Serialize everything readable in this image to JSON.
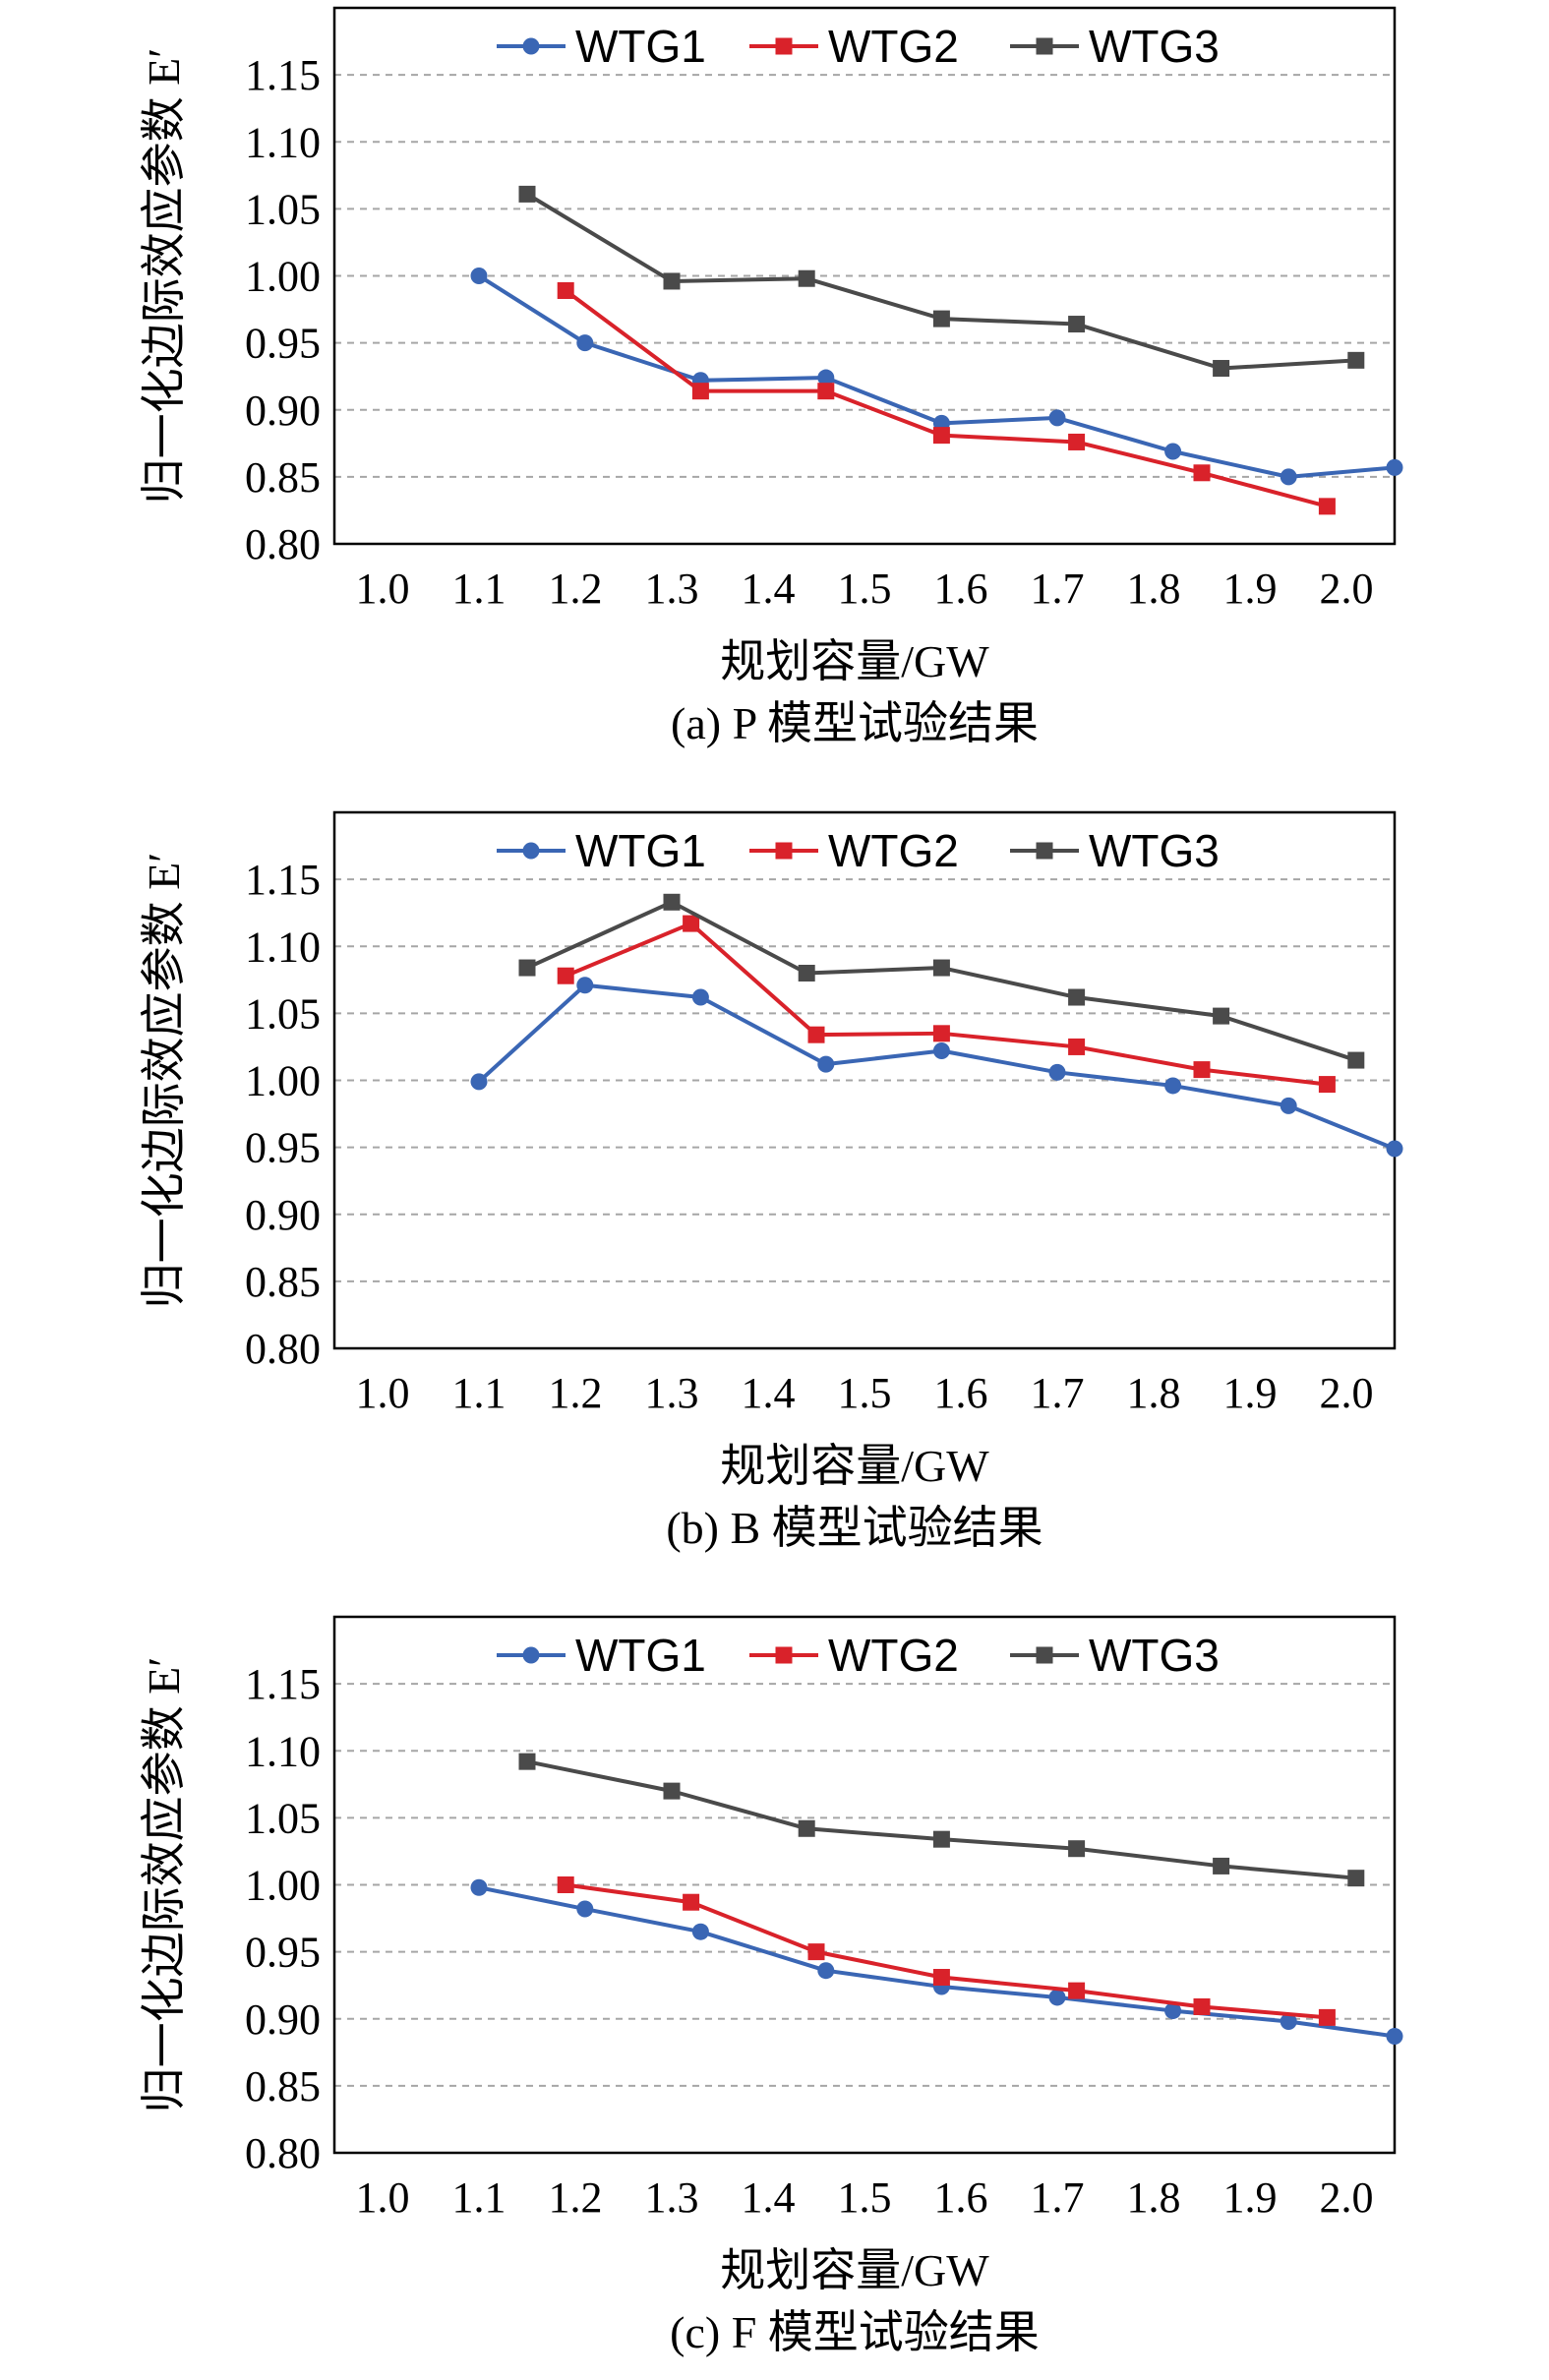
{
  "colors": {
    "WTG1": "#3a66b4",
    "WTG2": "#d9222a",
    "WTG3": "#4a4a4a",
    "grid": "#a6a6a6",
    "frame": "#000000"
  },
  "chart_data": [
    {
      "type": "line",
      "panel": "a",
      "caption": "(a) P 模型试验结果",
      "xlabel": "规划容量/GW",
      "ylabel": "归一化边际效应参数 E′",
      "xlim": [
        0.95,
        2.05
      ],
      "ylim": [
        0.8,
        1.2
      ],
      "xticks": [
        "1.0",
        "1.1",
        "1.2",
        "1.3",
        "1.4",
        "1.5",
        "1.6",
        "1.7",
        "1.8",
        "1.9",
        "2.0"
      ],
      "yticks": [
        "0.80",
        "0.85",
        "0.90",
        "0.95",
        "1.00",
        "1.05",
        "1.10",
        "1.15"
      ],
      "grid": "horizontal dashed",
      "legend": "top",
      "series": [
        {
          "name": "WTG1",
          "marker": "circle",
          "x": [
            1.1,
            1.21,
            1.33,
            1.46,
            1.58,
            1.7,
            1.82,
            1.94,
            2.05
          ],
          "y": [
            1.0,
            0.95,
            0.922,
            0.924,
            0.89,
            0.894,
            0.869,
            0.85,
            0.857
          ]
        },
        {
          "name": "WTG2",
          "marker": "square",
          "x": [
            1.19,
            1.33,
            1.46,
            1.58,
            1.72,
            1.85,
            1.98
          ],
          "y": [
            0.989,
            0.914,
            0.914,
            0.881,
            0.876,
            0.853,
            0.828
          ]
        },
        {
          "name": "WTG3",
          "marker": "square",
          "x": [
            1.15,
            1.3,
            1.44,
            1.58,
            1.72,
            1.87,
            2.01
          ],
          "y": [
            1.061,
            0.996,
            0.998,
            0.968,
            0.964,
            0.931,
            0.937
          ]
        }
      ]
    },
    {
      "type": "line",
      "panel": "b",
      "caption": "(b) B 模型试验结果",
      "xlabel": "规划容量/GW",
      "ylabel": "归一化边际效应参数 E′",
      "xlim": [
        0.95,
        2.05
      ],
      "ylim": [
        0.8,
        1.2
      ],
      "xticks": [
        "1.0",
        "1.1",
        "1.2",
        "1.3",
        "1.4",
        "1.5",
        "1.6",
        "1.7",
        "1.8",
        "1.9",
        "2.0"
      ],
      "yticks": [
        "0.80",
        "0.85",
        "0.90",
        "0.95",
        "1.00",
        "1.05",
        "1.10",
        "1.15"
      ],
      "grid": "horizontal dashed",
      "legend": "top",
      "series": [
        {
          "name": "WTG1",
          "marker": "circle",
          "x": [
            1.1,
            1.21,
            1.33,
            1.46,
            1.58,
            1.7,
            1.82,
            1.94,
            2.05
          ],
          "y": [
            0.999,
            1.071,
            1.062,
            1.012,
            1.022,
            1.006,
            0.996,
            0.981,
            0.949
          ]
        },
        {
          "name": "WTG2",
          "marker": "square",
          "x": [
            1.19,
            1.32,
            1.45,
            1.58,
            1.72,
            1.85,
            1.98
          ],
          "y": [
            1.078,
            1.117,
            1.034,
            1.035,
            1.025,
            1.008,
            0.997
          ]
        },
        {
          "name": "WTG3",
          "marker": "square",
          "x": [
            1.15,
            1.3,
            1.44,
            1.58,
            1.72,
            1.87,
            2.01
          ],
          "y": [
            1.084,
            1.133,
            1.08,
            1.084,
            1.062,
            1.048,
            1.015
          ]
        }
      ]
    },
    {
      "type": "line",
      "panel": "c",
      "caption": "(c) F 模型试验结果",
      "xlabel": "规划容量/GW",
      "ylabel": "归一化边际效应参数 E′",
      "xlim": [
        0.95,
        2.05
      ],
      "ylim": [
        0.8,
        1.2
      ],
      "xticks": [
        "1.0",
        "1.1",
        "1.2",
        "1.3",
        "1.4",
        "1.5",
        "1.6",
        "1.7",
        "1.8",
        "1.9",
        "2.0"
      ],
      "yticks": [
        "0.80",
        "0.85",
        "0.90",
        "0.95",
        "1.00",
        "1.05",
        "1.10",
        "1.15"
      ],
      "grid": "horizontal dashed",
      "legend": "top",
      "series": [
        {
          "name": "WTG1",
          "marker": "circle",
          "x": [
            1.1,
            1.21,
            1.33,
            1.46,
            1.58,
            1.7,
            1.82,
            1.94,
            2.05
          ],
          "y": [
            0.998,
            0.982,
            0.965,
            0.936,
            0.924,
            0.916,
            0.906,
            0.898,
            0.887
          ]
        },
        {
          "name": "WTG2",
          "marker": "square",
          "x": [
            1.19,
            1.32,
            1.45,
            1.58,
            1.72,
            1.85,
            1.98
          ],
          "y": [
            1.0,
            0.987,
            0.95,
            0.931,
            0.921,
            0.909,
            0.901
          ]
        },
        {
          "name": "WTG3",
          "marker": "square",
          "x": [
            1.15,
            1.3,
            1.44,
            1.58,
            1.72,
            1.87,
            2.01
          ],
          "y": [
            1.092,
            1.07,
            1.042,
            1.034,
            1.027,
            1.014,
            1.005
          ]
        }
      ]
    }
  ]
}
